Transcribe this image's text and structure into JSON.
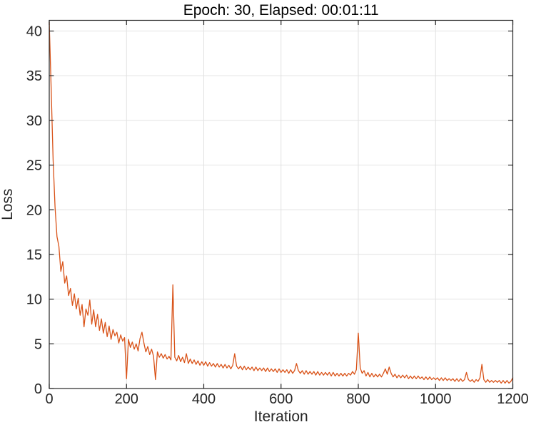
{
  "figure": {
    "background": "#ffffff"
  },
  "chart_data": {
    "type": "line",
    "title": "Epoch: 30, Elapsed: 00:01:11",
    "xlabel": "Iteration",
    "ylabel": "Loss",
    "xlim": [
      0,
      1200
    ],
    "ylim": [
      0,
      41.2
    ],
    "xticks": [
      0,
      200,
      400,
      600,
      800,
      1000,
      1200
    ],
    "yticks": [
      0,
      5,
      10,
      15,
      20,
      25,
      30,
      35,
      40
    ],
    "grid": true,
    "box": true,
    "legend": "none",
    "line_color": "#D95319",
    "axis_color": "#262626",
    "grid_color": "#E2E2E2",
    "text_color": "#262626",
    "title_color": "#000000",
    "x_start": 0,
    "x_step": 5,
    "y": [
      41.0,
      33.5,
      25.6,
      20.3,
      17.0,
      15.9,
      13.1,
      14.2,
      11.8,
      12.6,
      10.4,
      11.2,
      9.3,
      10.6,
      8.9,
      10.1,
      8.2,
      9.4,
      6.9,
      8.9,
      8.2,
      9.9,
      7.2,
      8.8,
      6.9,
      8.3,
      6.5,
      7.8,
      6.2,
      7.4,
      5.8,
      7.0,
      5.5,
      6.6,
      5.9,
      6.3,
      5.1,
      6.0,
      5.3,
      5.7,
      1.1,
      5.5,
      4.6,
      5.2,
      4.4,
      5.0,
      4.2,
      5.6,
      6.3,
      5.1,
      4.1,
      4.7,
      3.8,
      4.4,
      3.6,
      1.0,
      4.1,
      3.5,
      3.9,
      3.4,
      3.8,
      3.3,
      3.6,
      3.2,
      11.6,
      3.5,
      3.1,
      3.7,
      3.0,
      3.5,
      2.9,
      3.9,
      2.8,
      3.3,
      2.8,
      3.2,
      2.7,
      3.1,
      2.6,
      3.0,
      2.6,
      3.0,
      2.5,
      2.9,
      2.5,
      2.8,
      2.4,
      2.8,
      2.4,
      2.7,
      2.3,
      2.7,
      2.3,
      2.6,
      2.2,
      2.6,
      3.9,
      2.5,
      2.2,
      2.5,
      2.1,
      2.5,
      2.1,
      2.4,
      2.1,
      2.4,
      2.0,
      2.4,
      2.0,
      2.3,
      2.0,
      2.3,
      1.9,
      2.3,
      1.9,
      2.2,
      1.9,
      2.2,
      1.8,
      2.2,
      1.8,
      2.1,
      1.8,
      2.1,
      1.7,
      2.1,
      1.7,
      2.0,
      2.8,
      2.0,
      1.7,
      2.0,
      1.6,
      2.0,
      1.6,
      1.9,
      1.6,
      1.9,
      1.5,
      1.9,
      1.5,
      1.8,
      1.5,
      1.8,
      1.5,
      1.8,
      1.4,
      1.8,
      1.4,
      1.7,
      1.4,
      1.7,
      1.4,
      1.7,
      1.4,
      1.7,
      1.5,
      1.9,
      1.6,
      2.1,
      6.2,
      2.3,
      1.7,
      2.0,
      1.4,
      1.8,
      1.3,
      1.7,
      1.3,
      1.6,
      1.3,
      1.6,
      1.3,
      1.7,
      2.2,
      1.6,
      2.4,
      1.7,
      1.3,
      1.6,
      1.2,
      1.5,
      1.2,
      1.5,
      1.2,
      1.5,
      1.1,
      1.4,
      1.1,
      1.4,
      1.1,
      1.4,
      1.1,
      1.3,
      1.0,
      1.3,
      1.0,
      1.3,
      1.0,
      1.2,
      1.0,
      1.2,
      0.9,
      1.2,
      0.9,
      1.2,
      0.9,
      1.1,
      0.9,
      1.1,
      0.8,
      1.1,
      0.8,
      1.1,
      0.8,
      1.0,
      1.8,
      1.0,
      0.8,
      1.0,
      0.7,
      1.0,
      0.8,
      1.2,
      2.7,
      1.0,
      0.7,
      1.0,
      0.7,
      0.9,
      0.7,
      0.9,
      0.7,
      0.9,
      0.6,
      0.9,
      0.6,
      0.9,
      0.6,
      0.8,
      1.2
    ]
  }
}
